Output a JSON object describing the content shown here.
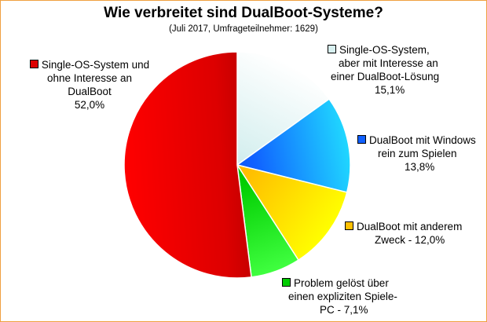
{
  "chart_data": {
    "type": "pie",
    "title": "Wie verbreitet sind DualBoot-Systeme?",
    "subtitle": "(Juli 2017, Umfrageteilnehmer: 1629)",
    "slices": [
      {
        "name": "Single-OS-System, aber mit Interesse an einer DualBoot-Lösung",
        "lines": [
          "Single-OS-System,",
          "aber mit Interesse an",
          "einer DualBoot-Lösung"
        ],
        "value": 15.1,
        "value_label": "15,1%",
        "color": "#d8f0f0",
        "color_dark": "#80d0d8",
        "color_light": "#ffffff"
      },
      {
        "name": "DualBoot mit Windows rein zum Spielen",
        "lines": [
          "DualBoot mit Windows",
          "rein zum Spielen"
        ],
        "value": 13.8,
        "value_label": "13,8%",
        "color": "#1060ff",
        "color_dark": "#0030d0",
        "color_light": "#20d8ff"
      },
      {
        "name": "DualBoot mit anderem Zweck",
        "lines": [
          "DualBoot mit anderem",
          "Zweck - 12,0%"
        ],
        "value": 12.0,
        "value_label": "",
        "color": "#ffc000",
        "color_dark": "#ff8000",
        "color_light": "#ffff00"
      },
      {
        "name": "Problem gelöst über einen expliziten Spiele-PC",
        "lines": [
          "Problem gelöst über",
          "einen expliziten Spiele-",
          "PC - 7,1%"
        ],
        "value": 7.1,
        "value_label": "",
        "color": "#00cc00",
        "color_dark": "#009000",
        "color_light": "#40ff40"
      },
      {
        "name": "Single-OS-System und ohne Interesse an DualBoot",
        "lines": [
          "Single-OS-System und",
          "ohne Interesse an",
          "DualBoot"
        ],
        "value": 52.0,
        "value_label": "52,0%",
        "color": "#dd0000",
        "color_dark": "#700000",
        "color_light": "#ff0000"
      }
    ],
    "legend": "labels-beside-slices"
  }
}
